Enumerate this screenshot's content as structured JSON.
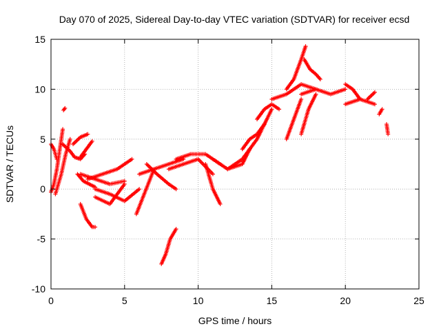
{
  "chart_data": {
    "type": "scatter",
    "title": "Day 070 of 2025, Sidereal Day-to-day VTEC variation (SDTVAR) for receiver ecsd",
    "xlabel": "GPS time / hours",
    "ylabel": "SDTVAR / TECUs",
    "xlim": [
      0,
      25
    ],
    "ylim": [
      -10,
      15
    ],
    "xticks": [
      "0",
      "5",
      "10",
      "15",
      "20",
      "25"
    ],
    "yticks": [
      "-10",
      "-5",
      "0",
      "5",
      "10",
      "15"
    ],
    "grid": true,
    "marker": "+",
    "color": "#ff0000",
    "series": [
      {
        "name": "t01",
        "x": [
          0.0,
          0.2,
          0.4,
          0.6,
          0.8
        ],
        "y": [
          -0.3,
          0.5,
          2.0,
          4.0,
          6.0
        ]
      },
      {
        "name": "t02",
        "x": [
          0.0,
          0.2,
          0.4
        ],
        "y": [
          4.5,
          4.0,
          3.0
        ]
      },
      {
        "name": "t03",
        "x": [
          0.3,
          0.5,
          0.7,
          1.0,
          1.3
        ],
        "y": [
          -0.5,
          0.5,
          1.5,
          3.5,
          5.0
        ]
      },
      {
        "name": "t04",
        "x": [
          0.85,
          0.95
        ],
        "y": [
          7.9,
          8.1
        ]
      },
      {
        "name": "t05",
        "x": [
          0.8,
          1.0,
          1.3,
          1.6,
          2.0,
          2.3
        ],
        "y": [
          4.5,
          4.2,
          3.8,
          3.2,
          3.0,
          3.5
        ]
      },
      {
        "name": "t06",
        "x": [
          1.5,
          2.0,
          2.5
        ],
        "y": [
          4.5,
          5.2,
          5.5
        ]
      },
      {
        "name": "t07",
        "x": [
          1.8,
          2.2,
          2.6,
          3.0
        ],
        "y": [
          1.5,
          0.8,
          0.5,
          0.2
        ]
      },
      {
        "name": "t08",
        "x": [
          2.0,
          2.4,
          2.8,
          3.0
        ],
        "y": [
          -1.5,
          -3.0,
          -3.8,
          -3.8
        ]
      },
      {
        "name": "t09",
        "x": [
          2.0,
          2.4,
          2.8
        ],
        "y": [
          3.2,
          4.0,
          4.8
        ]
      },
      {
        "name": "t10",
        "x": [
          2.0,
          3.0,
          4.0,
          5.0
        ],
        "y": [
          1.5,
          1.0,
          0.5,
          0.8
        ]
      },
      {
        "name": "t11",
        "x": [
          2.5,
          3.5,
          4.5,
          5.5
        ],
        "y": [
          1.0,
          1.5,
          2.0,
          3.0
        ]
      },
      {
        "name": "t12",
        "x": [
          3.0,
          4.0,
          5.0,
          6.0
        ],
        "y": [
          0.0,
          -0.5,
          -1.2,
          0.0
        ]
      },
      {
        "name": "t13",
        "x": [
          3.0,
          4.0,
          5.0
        ],
        "y": [
          -0.8,
          -1.5,
          0.5
        ]
      },
      {
        "name": "t14",
        "x": [
          5.8,
          6.2,
          6.6,
          7.0
        ],
        "y": [
          -2.5,
          -1.0,
          0.5,
          2.0
        ]
      },
      {
        "name": "t15",
        "x": [
          6.0,
          7.0,
          8.0,
          9.0
        ],
        "y": [
          1.5,
          2.0,
          2.5,
          3.0
        ]
      },
      {
        "name": "t16",
        "x": [
          6.5,
          7.2,
          8.0,
          8.5
        ],
        "y": [
          2.5,
          1.5,
          0.5,
          0.0
        ]
      },
      {
        "name": "t17",
        "x": [
          7.5,
          7.8,
          8.1,
          8.5
        ],
        "y": [
          -7.5,
          -6.5,
          -5.0,
          -4.0
        ]
      },
      {
        "name": "t18",
        "x": [
          8.5,
          9.5,
          10.5,
          11.5
        ],
        "y": [
          3.0,
          3.5,
          3.5,
          2.5
        ]
      },
      {
        "name": "t19",
        "x": [
          8.0,
          9.0,
          10.0,
          11.0
        ],
        "y": [
          2.0,
          2.5,
          3.0,
          1.5
        ]
      },
      {
        "name": "t20",
        "x": [
          10.5,
          11.0,
          11.5
        ],
        "y": [
          2.5,
          0.0,
          -1.5
        ]
      },
      {
        "name": "t21",
        "x": [
          11.0,
          12.0,
          13.0,
          13.5
        ],
        "y": [
          3.0,
          2.0,
          2.5,
          4.0
        ]
      },
      {
        "name": "t22",
        "x": [
          13.0,
          13.5,
          14.0,
          14.5
        ],
        "y": [
          4.0,
          5.0,
          5.5,
          6.5
        ]
      },
      {
        "name": "t23",
        "x": [
          12.0,
          13.0,
          14.0,
          15.0
        ],
        "y": [
          2.0,
          3.0,
          5.0,
          8.0
        ]
      },
      {
        "name": "t24",
        "x": [
          14.0,
          14.5,
          15.0,
          15.5
        ],
        "y": [
          7.0,
          8.0,
          8.5,
          8.0
        ]
      },
      {
        "name": "t25",
        "x": [
          15.0,
          16.0,
          17.0,
          18.0
        ],
        "y": [
          9.0,
          9.5,
          10.5,
          10.0
        ]
      },
      {
        "name": "t26",
        "x": [
          16.0,
          16.5,
          17.0,
          17.3
        ],
        "y": [
          10.0,
          11.0,
          13.0,
          14.3
        ]
      },
      {
        "name": "t27",
        "x": [
          17.2,
          17.6,
          18.0,
          18.3
        ],
        "y": [
          13.0,
          12.0,
          11.5,
          11.0
        ]
      },
      {
        "name": "t28",
        "x": [
          16.0,
          16.5,
          17.0
        ],
        "y": [
          5.0,
          7.0,
          9.0
        ]
      },
      {
        "name": "t29",
        "x": [
          17.0,
          17.5,
          18.0
        ],
        "y": [
          5.5,
          8.0,
          9.5
        ]
      },
      {
        "name": "t30",
        "x": [
          17.0,
          18.0,
          19.0,
          20.0
        ],
        "y": [
          9.5,
          10.0,
          9.5,
          10.0
        ]
      },
      {
        "name": "t31",
        "x": [
          20.0,
          20.5,
          21.0
        ],
        "y": [
          10.5,
          10.0,
          9.0
        ]
      },
      {
        "name": "t32",
        "x": [
          20.0,
          21.0,
          22.0
        ],
        "y": [
          8.5,
          9.0,
          8.5
        ]
      },
      {
        "name": "t33",
        "x": [
          21.5,
          22.0
        ],
        "y": [
          9.0,
          9.7
        ]
      },
      {
        "name": "t34",
        "x": [
          22.3,
          22.5
        ],
        "y": [
          7.5,
          8.0
        ]
      },
      {
        "name": "t35",
        "x": [
          22.8,
          22.9
        ],
        "y": [
          6.5,
          5.5
        ]
      }
    ]
  }
}
